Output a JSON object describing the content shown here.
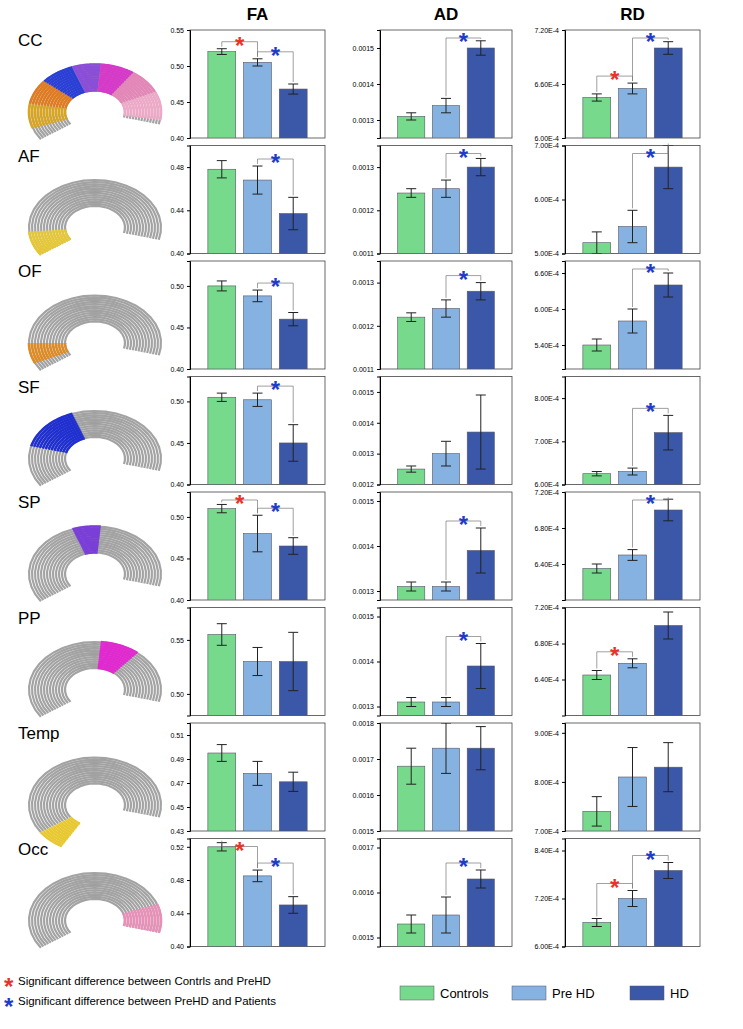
{
  "columns": [
    "FA",
    "AD",
    "RD"
  ],
  "rows": [
    "CC",
    "AF",
    "OF",
    "SF",
    "SP",
    "PP",
    "Temp",
    "Occ"
  ],
  "groups": [
    {
      "name": "Controls",
      "color": "#77d98c"
    },
    {
      "name": "Pre HD",
      "color": "#85b2e0"
    },
    {
      "name": "HD",
      "color": "#3b58a8"
    }
  ],
  "significance_legend": [
    {
      "text": "*",
      "color": "#e8322b",
      "label": "Significant difference between Contrls and PreHD"
    },
    {
      "text": "*",
      "color": "#1f3cc8",
      "label": "Significant difference between PreHD and Patients"
    }
  ],
  "chart_data": [
    {
      "type": "bar",
      "ylim": [
        0.4,
        0.55
      ],
      "yticks": [
        {
          "value": 0.4,
          "label": "0.40"
        },
        0.45,
        {
          "value": 0.5,
          "label": "0.50"
        },
        0.55
      ],
      "values": [
        0.52,
        0.505,
        0.468
      ],
      "errors": [
        0.004,
        0.005,
        0.007
      ],
      "annotations": [
        {
          "pair": [
            0,
            1
          ],
          "text": "*",
          "color": "#e8322b"
        },
        {
          "pair": [
            1,
            2
          ],
          "text": "*",
          "color": "#1f3cc8"
        }
      ]
    },
    {
      "type": "bar",
      "ylim": [
        0.00125,
        0.00155
      ],
      "yticks": [
        0.0013,
        0.0014,
        0.0015
      ],
      "values": [
        0.00131,
        0.00134,
        0.0015
      ],
      "errors": [
        1e-05,
        2e-05,
        2e-05
      ],
      "annotations": [
        {
          "pair": [
            1,
            2
          ],
          "text": "*",
          "color": "#1f3cc8"
        }
      ]
    },
    {
      "type": "bar",
      "ylim": [
        0.0006,
        0.00072
      ],
      "yticks": [
        {
          "value": 0.0006,
          "label": "6.00E-4"
        },
        {
          "value": 0.00066,
          "label": "6.60E-4"
        },
        {
          "value": 0.00072,
          "label": "7.20E-4"
        }
      ],
      "values": [
        0.000645,
        0.000655,
        0.0007
      ],
      "errors": [
        4e-06,
        6e-06,
        7e-06
      ],
      "annotations": [
        {
          "pair": [
            0,
            1
          ],
          "text": "*",
          "color": "#e8322b"
        },
        {
          "pair": [
            1,
            2
          ],
          "text": "*",
          "color": "#1f3cc8"
        }
      ]
    },
    {
      "type": "bar",
      "ylim": [
        0.4,
        0.5
      ],
      "yticks": [
        {
          "value": 0.4,
          "label": "0.40"
        },
        0.44,
        0.48
      ],
      "values": [
        0.478,
        0.468,
        0.437
      ],
      "errors": [
        0.008,
        0.013,
        0.015
      ],
      "annotations": [
        {
          "pair": [
            1,
            2
          ],
          "text": "*",
          "color": "#1f3cc8"
        }
      ]
    },
    {
      "type": "bar",
      "ylim": [
        0.0011,
        0.00135
      ],
      "yticks": [
        0.0011,
        0.0012,
        0.0013
      ],
      "values": [
        0.00124,
        0.00125,
        0.0013
      ],
      "errors": [
        1e-05,
        2e-05,
        2e-05
      ],
      "annotations": [
        {
          "pair": [
            1,
            2
          ],
          "text": "*",
          "color": "#1f3cc8"
        }
      ]
    },
    {
      "type": "bar",
      "ylim": [
        0.0005,
        0.0007
      ],
      "yticks": [
        {
          "value": 0.0005,
          "label": "5.00E-4"
        },
        {
          "value": 0.0006,
          "label": "6.00E-4"
        },
        {
          "value": 0.0007,
          "label": "7.00E-4"
        }
      ],
      "values": [
        0.00052,
        0.00055,
        0.00066
      ],
      "errors": [
        2e-05,
        3e-05,
        4e-05
      ],
      "annotations": [
        {
          "pair": [
            1,
            2
          ],
          "text": "*",
          "color": "#1f3cc8"
        }
      ]
    },
    {
      "type": "bar",
      "ylim": [
        0.4,
        0.53
      ],
      "yticks": [
        {
          "value": 0.4,
          "label": "0.40"
        },
        0.45,
        {
          "value": 0.5,
          "label": "0.50"
        }
      ],
      "values": [
        0.5,
        0.488,
        0.46
      ],
      "errors": [
        0.006,
        0.007,
        0.008
      ],
      "annotations": [
        {
          "pair": [
            1,
            2
          ],
          "text": "*",
          "color": "#1f3cc8"
        }
      ]
    },
    {
      "type": "bar",
      "ylim": [
        0.0011,
        0.00135
      ],
      "yticks": [
        0.0011,
        0.0012,
        0.0013
      ],
      "values": [
        0.00122,
        0.00124,
        0.00128
      ],
      "errors": [
        1e-05,
        2e-05,
        2e-05
      ],
      "annotations": [
        {
          "pair": [
            1,
            2
          ],
          "text": "*",
          "color": "#1f3cc8"
        }
      ]
    },
    {
      "type": "bar",
      "ylim": [
        0.0005,
        0.00068
      ],
      "yticks": [
        {
          "value": 0.00054,
          "label": "5.40E-4"
        },
        {
          "value": 0.0006,
          "label": "6.00E-4"
        },
        {
          "value": 0.00066,
          "label": "6.60E-4"
        }
      ],
      "values": [
        0.00054,
        0.00058,
        0.00064
      ],
      "errors": [
        1e-05,
        2e-05,
        2e-05
      ],
      "annotations": [
        {
          "pair": [
            1,
            2
          ],
          "text": "*",
          "color": "#1f3cc8"
        }
      ]
    },
    {
      "type": "bar",
      "ylim": [
        0.4,
        0.53
      ],
      "yticks": [
        {
          "value": 0.4,
          "label": "0.40"
        },
        0.45,
        {
          "value": 0.5,
          "label": "0.50"
        }
      ],
      "values": [
        0.505,
        0.502,
        0.45
      ],
      "errors": [
        0.005,
        0.008,
        0.022
      ],
      "annotations": [
        {
          "pair": [
            1,
            2
          ],
          "text": "*",
          "color": "#1f3cc8"
        }
      ]
    },
    {
      "type": "bar",
      "ylim": [
        0.0012,
        0.00155
      ],
      "yticks": [
        0.0012,
        0.0013,
        0.0014,
        0.0015
      ],
      "values": [
        0.00125,
        0.0013,
        0.00137
      ],
      "errors": [
        1e-05,
        4e-05,
        0.00012
      ],
      "annotations": []
    },
    {
      "type": "bar",
      "ylim": [
        0.0006,
        0.00085
      ],
      "yticks": [
        {
          "value": 0.0006,
          "label": "6.00E-4"
        },
        {
          "value": 0.0007,
          "label": "7.00E-4"
        },
        {
          "value": 0.0008,
          "label": "8.00E-4"
        }
      ],
      "values": [
        0.000625,
        0.00063,
        0.00072
      ],
      "errors": [
        5e-06,
        8e-06,
        4e-05
      ],
      "annotations": [
        {
          "pair": [
            1,
            2
          ],
          "text": "*",
          "color": "#1f3cc8"
        }
      ]
    },
    {
      "type": "bar",
      "ylim": [
        0.4,
        0.53
      ],
      "yticks": [
        {
          "value": 0.4,
          "label": "0.40"
        },
        0.45,
        {
          "value": 0.5,
          "label": "0.50"
        }
      ],
      "values": [
        0.51,
        0.48,
        0.465
      ],
      "errors": [
        0.005,
        0.022,
        0.01
      ],
      "annotations": [
        {
          "pair": [
            0,
            1
          ],
          "text": "*",
          "color": "#e8322b"
        },
        {
          "pair": [
            1,
            2
          ],
          "text": "*",
          "color": "#1f3cc8"
        }
      ]
    },
    {
      "type": "bar",
      "ylim": [
        0.00128,
        0.00152
      ],
      "yticks": [
        0.0013,
        0.0014,
        0.0015
      ],
      "values": [
        0.00131,
        0.00131,
        0.00139
      ],
      "errors": [
        1e-05,
        1e-05,
        5e-05
      ],
      "annotations": [
        {
          "pair": [
            1,
            2
          ],
          "text": "*",
          "color": "#1f3cc8"
        }
      ]
    },
    {
      "type": "bar",
      "ylim": [
        0.0006,
        0.00072
      ],
      "yticks": [
        {
          "value": 0.00064,
          "label": "6.40E-4"
        },
        {
          "value": 0.00068,
          "label": "6.80E-4"
        },
        {
          "value": 0.00072,
          "label": "7.20E-4"
        }
      ],
      "values": [
        0.000635,
        0.00065,
        0.0007
      ],
      "errors": [
        5e-06,
        6e-06,
        1.2e-05
      ],
      "annotations": [
        {
          "pair": [
            1,
            2
          ],
          "text": "*",
          "color": "#1f3cc8"
        }
      ]
    },
    {
      "type": "bar",
      "ylim": [
        0.48,
        0.58
      ],
      "yticks": [
        {
          "value": 0.5,
          "label": "0.50"
        },
        0.55
      ],
      "values": [
        0.555,
        0.53,
        0.53
      ],
      "errors": [
        0.01,
        0.013,
        0.027
      ],
      "annotations": []
    },
    {
      "type": "bar",
      "ylim": [
        0.00128,
        0.00152
      ],
      "yticks": [
        0.0013,
        0.0014,
        0.0015
      ],
      "values": [
        0.00131,
        0.00131,
        0.00139
      ],
      "errors": [
        1e-05,
        1e-05,
        5e-05
      ],
      "annotations": [
        {
          "pair": [
            1,
            2
          ],
          "text": "*",
          "color": "#1f3cc8"
        }
      ]
    },
    {
      "type": "bar",
      "ylim": [
        0.0006,
        0.00072
      ],
      "yticks": [
        {
          "value": 0.00064,
          "label": "6.40E-4"
        },
        {
          "value": 0.00068,
          "label": "6.80E-4"
        },
        {
          "value": 0.00072,
          "label": "7.20E-4"
        }
      ],
      "values": [
        0.000645,
        0.000658,
        0.0007
      ],
      "errors": [
        5e-06,
        5e-06,
        1.5e-05
      ],
      "annotations": [
        {
          "pair": [
            0,
            1
          ],
          "text": "*",
          "color": "#e8322b"
        }
      ]
    },
    {
      "type": "bar",
      "ylim": [
        0.43,
        0.52
      ],
      "yticks": [
        0.43,
        0.45,
        0.47,
        0.49,
        0.51
      ],
      "values": [
        0.495,
        0.478,
        0.471
      ],
      "errors": [
        0.007,
        0.01,
        0.008
      ],
      "annotations": []
    },
    {
      "type": "bar",
      "ylim": [
        0.0015,
        0.0018
      ],
      "yticks": [
        0.0015,
        0.0016,
        0.0017,
        0.0018
      ],
      "values": [
        0.00168,
        0.00173,
        0.00173
      ],
      "errors": [
        5e-05,
        7e-05,
        6e-05
      ],
      "annotations": []
    },
    {
      "type": "bar",
      "ylim": [
        0.0007,
        0.00092
      ],
      "yticks": [
        {
          "value": 0.0007,
          "label": "7.00E-4"
        },
        {
          "value": 0.0008,
          "label": "8.00E-4"
        },
        {
          "value": 0.0009,
          "label": "9.00E-4"
        }
      ],
      "values": [
        0.00074,
        0.00081,
        0.00083
      ],
      "errors": [
        3e-05,
        6e-05,
        5e-05
      ],
      "annotations": []
    },
    {
      "type": "bar",
      "ylim": [
        0.4,
        0.53
      ],
      "yticks": [
        {
          "value": 0.4,
          "label": "0.40"
        },
        0.44,
        0.48,
        0.52
      ],
      "values": [
        0.52,
        0.485,
        0.45
      ],
      "errors": [
        0.005,
        0.007,
        0.01
      ],
      "annotations": [
        {
          "pair": [
            0,
            1
          ],
          "text": "*",
          "color": "#e8322b"
        },
        {
          "pair": [
            1,
            2
          ],
          "text": "*",
          "color": "#1f3cc8"
        }
      ]
    },
    {
      "type": "bar",
      "ylim": [
        0.00148,
        0.00172
      ],
      "yticks": [
        0.0015,
        0.0016,
        0.0017
      ],
      "values": [
        0.00153,
        0.00155,
        0.00163
      ],
      "errors": [
        2e-05,
        4e-05,
        2e-05
      ],
      "annotations": [
        {
          "pair": [
            1,
            2
          ],
          "text": "*",
          "color": "#1f3cc8"
        }
      ]
    },
    {
      "type": "bar",
      "ylim": [
        0.0006,
        0.00087
      ],
      "yticks": [
        {
          "value": 0.0006,
          "label": "6.00E-4"
        },
        {
          "value": 0.00072,
          "label": "7.20E-4"
        },
        {
          "value": 0.00084,
          "label": "8.40E-4"
        }
      ],
      "values": [
        0.00066,
        0.00072,
        0.00079
      ],
      "errors": [
        1e-05,
        2e-05,
        2e-05
      ],
      "annotations": [
        {
          "pair": [
            0,
            1
          ],
          "text": "*",
          "color": "#e8322b"
        },
        {
          "pair": [
            1,
            2
          ],
          "text": "*",
          "color": "#1f3cc8"
        }
      ]
    }
  ]
}
